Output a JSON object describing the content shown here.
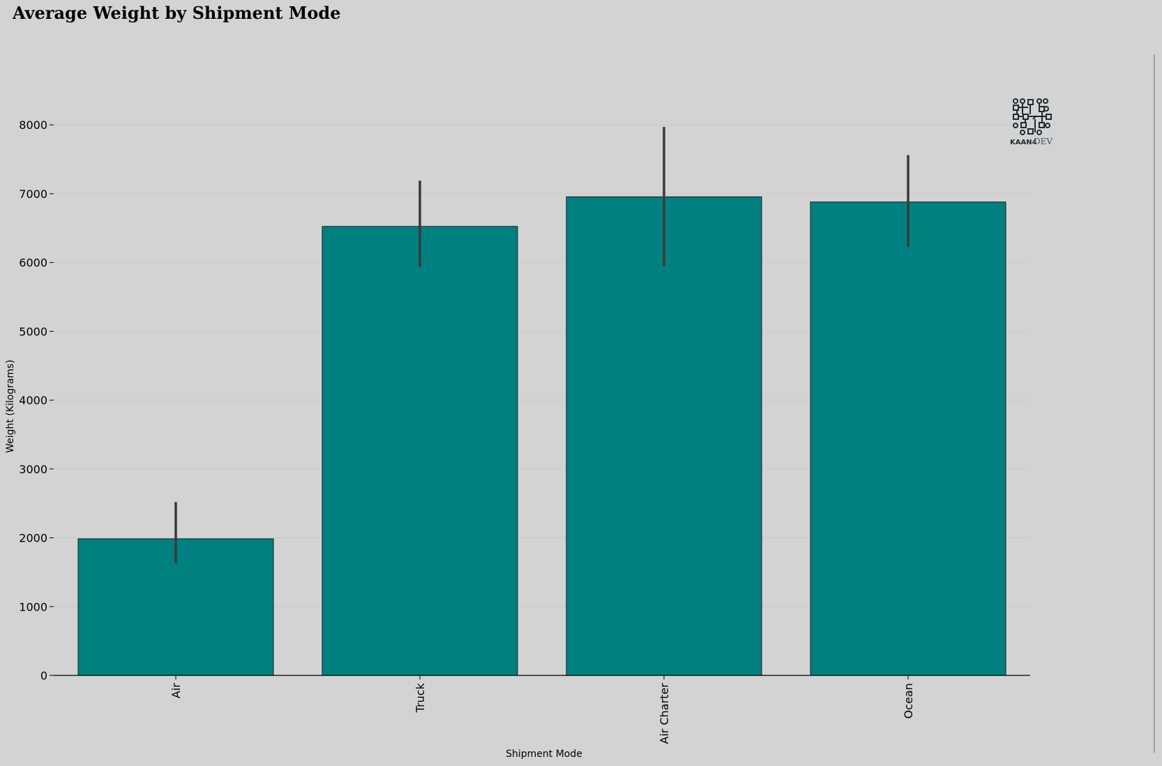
{
  "chart_data": {
    "type": "bar",
    "title": "Average Weight by Shipment Mode",
    "xlabel": "Shipment Mode",
    "ylabel": "Weight (Kilograms)",
    "categories": [
      "Air",
      "Truck",
      "Air Charter",
      "Ocean"
    ],
    "values": [
      1985,
      6525,
      6955,
      6880
    ],
    "error_low": [
      1630,
      5940,
      5950,
      6230
    ],
    "error_high": [
      2520,
      7190,
      7970,
      7560
    ],
    "ylim": [
      0,
      8000
    ],
    "yticks": [
      0,
      1000,
      2000,
      3000,
      4000,
      5000,
      6000,
      7000,
      8000
    ],
    "ytick_labels": [
      "0",
      "1000",
      "2000",
      "3000",
      "4000",
      "5000",
      "6000",
      "7000",
      "8000"
    ],
    "x_tick_rotation": "vertical",
    "grid": "horizontal, faint",
    "legend": "none",
    "colors": {
      "bar": "#008080",
      "bar_edge": "#1a1a1a",
      "error_bar": "#3a3a3a",
      "background": "#d3d3d3",
      "grid": "#c8c8c8",
      "axis": "#000000"
    }
  },
  "logo": {
    "text_bold": "KAAN4",
    "text_light": "DEV",
    "icon": "circuit-icon"
  }
}
